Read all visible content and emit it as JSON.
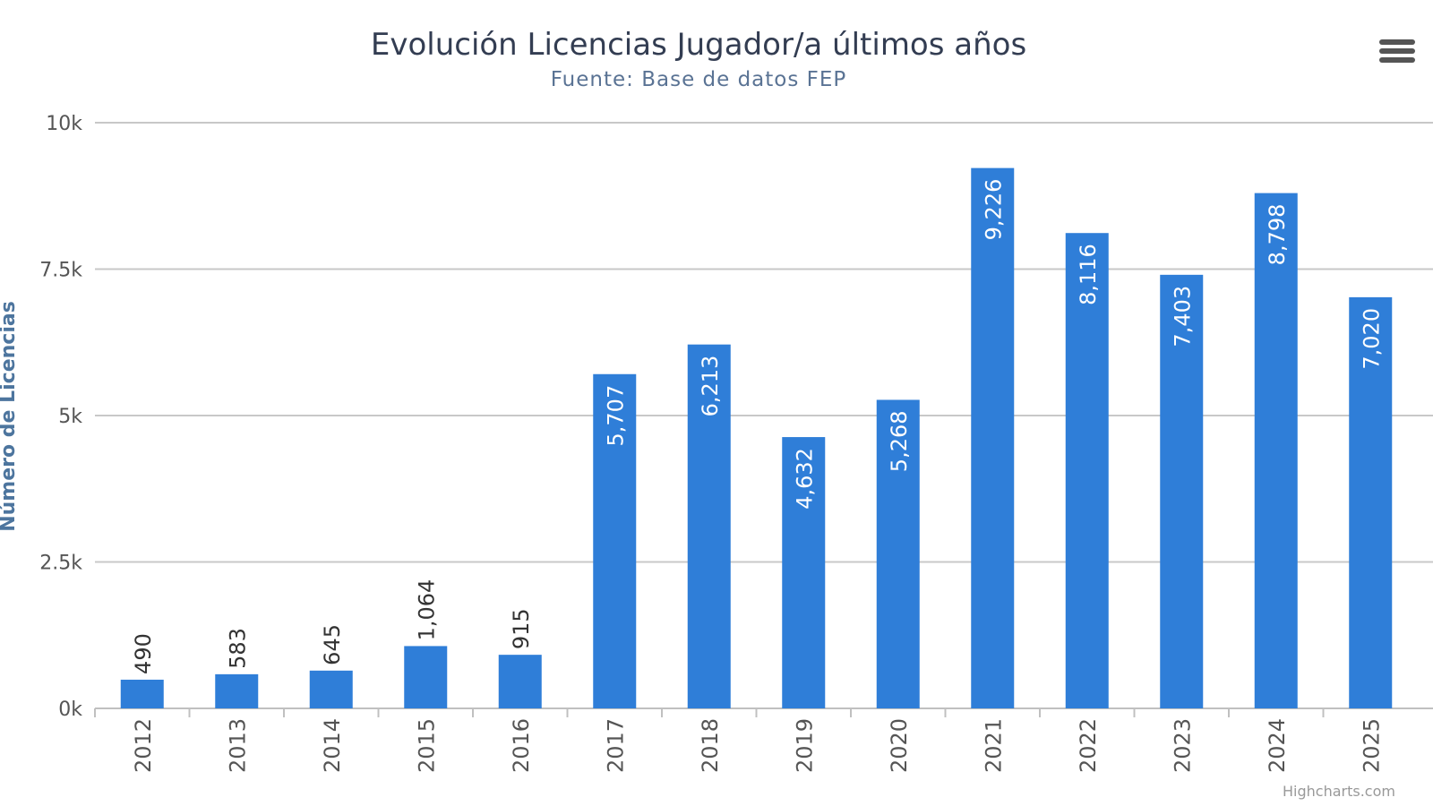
{
  "chart_data": {
    "type": "bar",
    "title": "Evolución Licencias Jugador/a últimos años",
    "subtitle": "Fuente: Base de datos FEP",
    "ylabel": "Número de Licencias",
    "xlabel": "",
    "categories": [
      "2012",
      "2013",
      "2014",
      "2015",
      "2016",
      "2017",
      "2018",
      "2019",
      "2020",
      "2021",
      "2022",
      "2023",
      "2024",
      "2025"
    ],
    "values": [
      490,
      583,
      645,
      1064,
      915,
      5707,
      6213,
      4632,
      5268,
      9226,
      8116,
      7403,
      8798,
      7020
    ],
    "data_labels": [
      "490",
      "583",
      "645",
      "1,064",
      "915",
      "5,707",
      "6,213",
      "4,632",
      "5,268",
      "9,226",
      "8,116",
      "7,403",
      "8,798",
      "7,020"
    ],
    "ylim": [
      0,
      10000
    ],
    "yticks": [
      {
        "v": 0,
        "label": "0k"
      },
      {
        "v": 2500,
        "label": "2.5k"
      },
      {
        "v": 5000,
        "label": "5k"
      },
      {
        "v": 7500,
        "label": "7.5k"
      },
      {
        "v": 10000,
        "label": "10k"
      }
    ],
    "grid": true,
    "legend": "none",
    "bar_color": "#2f7ed8"
  },
  "credits": "Highcharts.com",
  "menu_icon": "hamburger-menu-icon"
}
